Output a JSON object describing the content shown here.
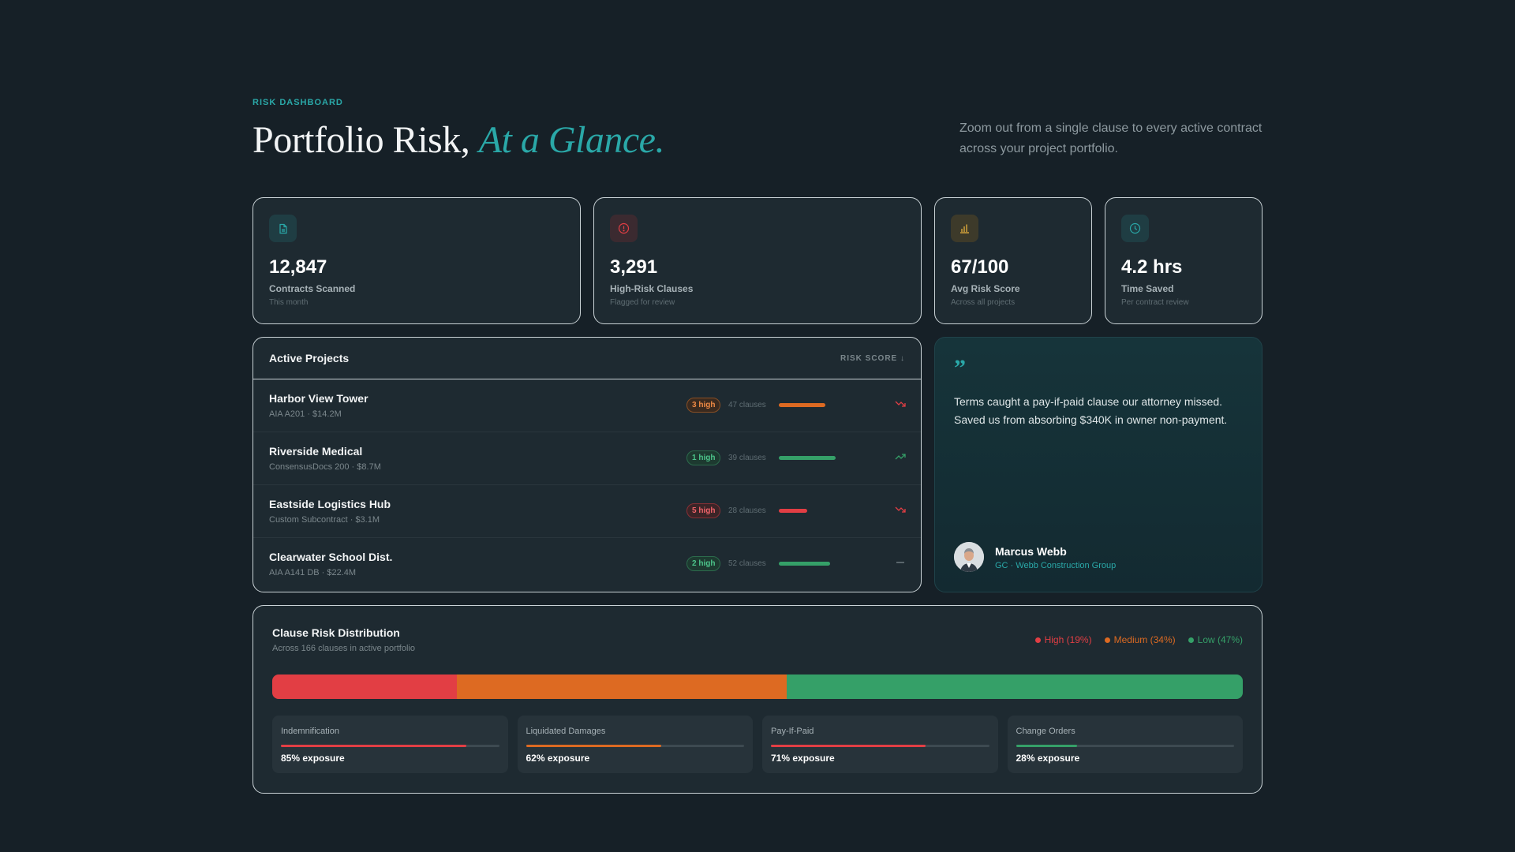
{
  "header": {
    "eyebrow": "RISK DASHBOARD",
    "title_main": "Portfolio Risk, ",
    "title_accent": "At a Glance.",
    "intro": "Zoom out from a single clause to every active contract across your project portfolio."
  },
  "stats": [
    {
      "value": "12,847",
      "label": "Contracts Scanned",
      "sub": "This month",
      "icon": "document-icon"
    },
    {
      "value": "3,291",
      "label": "High-Risk Clauses",
      "sub": "Flagged for review",
      "icon": "alert-icon"
    },
    {
      "value": "67/100",
      "label": "Avg Risk Score",
      "sub": "Across all projects",
      "icon": "bar-chart-icon"
    },
    {
      "value": "4.2 hrs",
      "label": "Time Saved",
      "sub": "Per contract review",
      "icon": "clock-icon"
    }
  ],
  "projects": {
    "title": "Active Projects",
    "sort_label": "RISK SCORE ↓",
    "rows": [
      {
        "name": "Harbor View Tower",
        "meta": "AIA A201 · $14.2M",
        "badge": "3 high",
        "clauses": "47 clauses",
        "level": "medium",
        "score": 0.39,
        "trend": "down"
      },
      {
        "name": "Riverside Medical",
        "meta": "ConsensusDocs 200 · $8.7M",
        "badge": "1 high",
        "clauses": "39 clauses",
        "level": "low",
        "score": 0.48,
        "trend": "up"
      },
      {
        "name": "Eastside Logistics Hub",
        "meta": "Custom Subcontract · $3.1M",
        "badge": "5 high",
        "clauses": "28 clauses",
        "level": "high",
        "score": 0.24,
        "trend": "down"
      },
      {
        "name": "Clearwater School Dist.",
        "meta": "AIA A141 DB · $22.4M",
        "badge": "2 high",
        "clauses": "52 clauses",
        "level": "low",
        "score": 0.43,
        "trend": "flat"
      }
    ]
  },
  "testimonial": {
    "quote_mark": "”",
    "text": "Terms caught a pay-if-paid clause our attorney missed. Saved us from absorbing $340K in owner non-payment.",
    "name": "Marcus Webb",
    "role": "GC · Webb Construction Group"
  },
  "distribution": {
    "title": "Clause Risk Distribution",
    "subtitle": "Across 166 clauses in active portfolio",
    "segments": [
      {
        "label": "High (19%)",
        "pct": 19,
        "color": "#e23e44"
      },
      {
        "label": "Medium (34%)",
        "pct": 34,
        "color": "#dd6a22"
      },
      {
        "label": "Low (47%)",
        "pct": 47,
        "color": "#35a068"
      }
    ],
    "tiles": [
      {
        "name": "Indemnification",
        "value": "85% exposure",
        "pct": 85,
        "color": "#e23e44"
      },
      {
        "name": "Liquidated Damages",
        "value": "62% exposure",
        "pct": 62,
        "color": "#dd6a22"
      },
      {
        "name": "Pay-If-Paid",
        "value": "71% exposure",
        "pct": 71,
        "color": "#e23e44"
      },
      {
        "name": "Change Orders",
        "value": "28% exposure",
        "pct": 28,
        "color": "#35a068"
      }
    ]
  },
  "colors": {
    "accent": "#2aa8a8",
    "high": "#e23e44",
    "medium": "#dd6a22",
    "low": "#35a068"
  }
}
